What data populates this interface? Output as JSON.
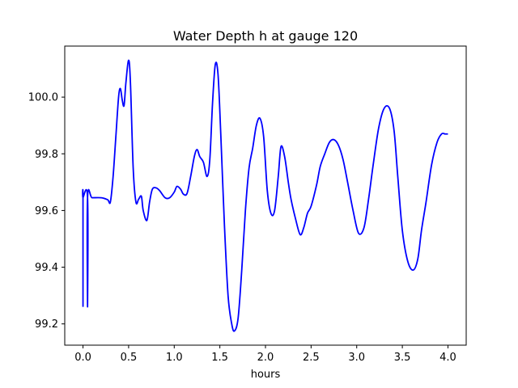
{
  "chart_data": {
    "type": "line",
    "title": "Water Depth h at gauge 120",
    "xlabel": "hours",
    "ylabel": "",
    "xlim": [
      -0.2,
      4.2
    ],
    "ylim": [
      99.125,
      100.18
    ],
    "xticks": [
      0.0,
      0.5,
      1.0,
      1.5,
      2.0,
      2.5,
      3.0,
      3.5,
      4.0
    ],
    "xtick_labels": [
      "0.0",
      "0.5",
      "1.0",
      "1.5",
      "2.0",
      "2.5",
      "3.0",
      "3.5",
      "4.0"
    ],
    "yticks": [
      99.2,
      99.4,
      99.6,
      99.8,
      100.0
    ],
    "ytick_labels": [
      "99.2",
      "99.4",
      "99.6",
      "99.8",
      "100.0"
    ],
    "grid": false,
    "series": [
      {
        "color": "#0000ff",
        "x": [
          0.0,
          0.0,
          0.0,
          0.05,
          0.05,
          0.05,
          0.1,
          0.2,
          0.27,
          0.3,
          0.33,
          0.36,
          0.39,
          0.41,
          0.43,
          0.45,
          0.47,
          0.5,
          0.52,
          0.55,
          0.58,
          0.61,
          0.64,
          0.66,
          0.7,
          0.73,
          0.76,
          0.8,
          0.84,
          0.9,
          0.95,
          1.0,
          1.03,
          1.07,
          1.1,
          1.14,
          1.18,
          1.22,
          1.25,
          1.28,
          1.32,
          1.36,
          1.39,
          1.42,
          1.45,
          1.48,
          1.51,
          1.55,
          1.59,
          1.63,
          1.66,
          1.7,
          1.74,
          1.78,
          1.82,
          1.86,
          1.9,
          1.94,
          1.98,
          2.02,
          2.06,
          2.1,
          2.14,
          2.17,
          2.21,
          2.25,
          2.28,
          2.33,
          2.38,
          2.42,
          2.46,
          2.5,
          2.56,
          2.6,
          2.65,
          2.7,
          2.75,
          2.8,
          2.85,
          2.9,
          2.96,
          3.02,
          3.08,
          3.13,
          3.18,
          3.24,
          3.3,
          3.36,
          3.41,
          3.45,
          3.5,
          3.56,
          3.62,
          3.67,
          3.71,
          3.76,
          3.82,
          3.88,
          3.93,
          3.97,
          4.0
        ],
        "y": [
          99.26,
          99.645,
          99.645,
          99.645,
          99.26,
          99.645,
          99.645,
          99.645,
          99.638,
          99.63,
          99.72,
          99.86,
          100.0,
          100.03,
          99.99,
          99.97,
          100.05,
          100.13,
          100.05,
          99.75,
          99.63,
          99.64,
          99.65,
          99.6,
          99.565,
          99.63,
          99.675,
          99.68,
          99.67,
          99.645,
          99.645,
          99.665,
          99.685,
          99.675,
          99.658,
          99.66,
          99.72,
          99.79,
          99.815,
          99.79,
          99.77,
          99.72,
          99.78,
          99.98,
          100.115,
          100.08,
          99.87,
          99.55,
          99.3,
          99.2,
          99.175,
          99.22,
          99.39,
          99.6,
          99.75,
          99.82,
          99.9,
          99.925,
          99.86,
          99.67,
          99.59,
          99.6,
          99.72,
          99.825,
          99.79,
          99.7,
          99.64,
          99.57,
          99.515,
          99.54,
          99.59,
          99.615,
          99.69,
          99.755,
          99.8,
          99.84,
          99.85,
          99.83,
          99.78,
          99.7,
          99.6,
          99.52,
          99.54,
          99.64,
          99.76,
          99.89,
          99.96,
          99.96,
          99.88,
          99.72,
          99.53,
          99.42,
          99.39,
          99.43,
          99.53,
          99.63,
          99.76,
          99.84,
          99.87,
          99.87,
          99.87
        ]
      }
    ]
  }
}
